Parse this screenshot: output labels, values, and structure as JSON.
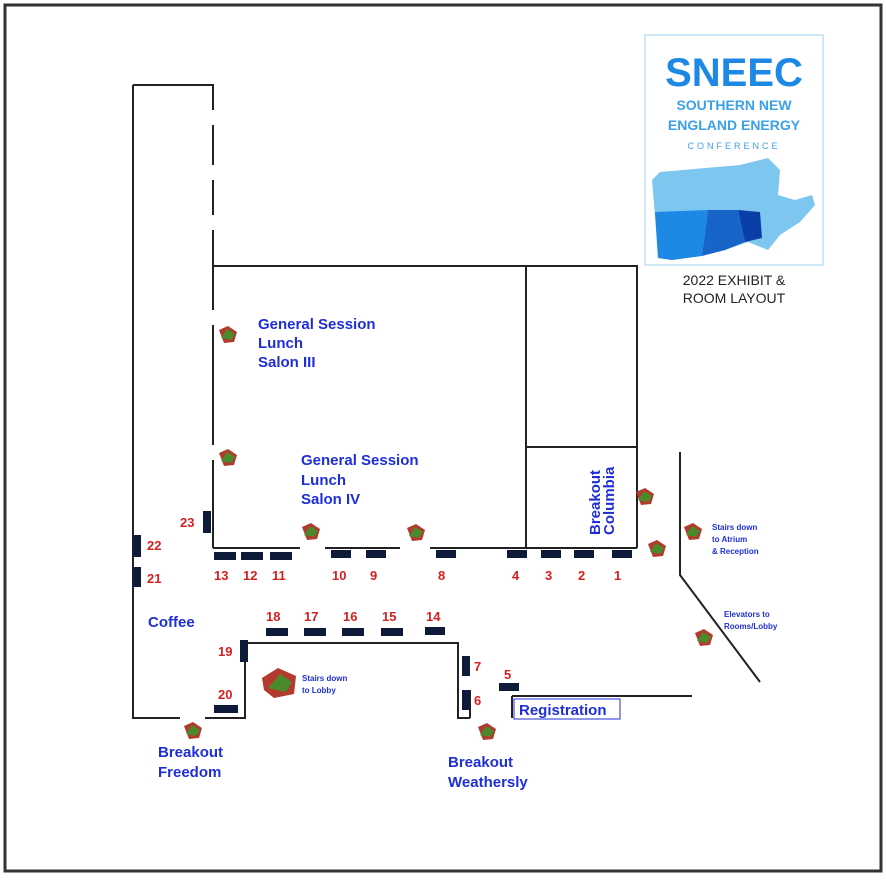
{
  "logo": {
    "wordmark": "SNEEC",
    "line1": "SOUTHERN NEW",
    "line2": "ENGLAND ENERGY",
    "line3": "CONFERENCE",
    "caption1": "2022 EXHIBIT &",
    "caption2": "ROOM LAYOUT",
    "colors": {
      "primary": "#1e88e5",
      "light": "#7cc6f0",
      "dark": "#0b3fa8"
    }
  },
  "rooms": {
    "salon3": [
      "General Session",
      "Lunch",
      "Salon III"
    ],
    "salon4": [
      "General Session",
      "Lunch",
      "Salon IV"
    ],
    "columbia": [
      "Breakout",
      "Columbia"
    ],
    "coffee": "Coffee",
    "registration": "Registration",
    "freedom": [
      "Breakout",
      "Freedom"
    ],
    "weathersly": [
      "Breakout",
      "Weathersly"
    ]
  },
  "notes": {
    "stairs_atrium": [
      "Stairs down",
      "to Atrium",
      "& Reception"
    ],
    "elevators": [
      "Elevators to",
      "Rooms/Lobby"
    ],
    "stairs_lobby": [
      "Stairs down",
      "to Lobby"
    ]
  },
  "booths": {
    "b1": "1",
    "b2": "2",
    "b3": "3",
    "b4": "4",
    "b5": "5",
    "b6": "6",
    "b7": "7",
    "b8": "8",
    "b9": "9",
    "b10": "10",
    "b11": "11",
    "b12": "12",
    "b13": "13",
    "b14": "14",
    "b15": "15",
    "b16": "16",
    "b17": "17",
    "b18": "18",
    "b19": "19",
    "b20": "20",
    "b21": "21",
    "b22": "22",
    "b23": "23"
  },
  "colors": {
    "room_text": "#1f2fd6",
    "booth_number": "#d61f1f",
    "booth": "#0d1a3a",
    "plant": "#c0392b"
  }
}
